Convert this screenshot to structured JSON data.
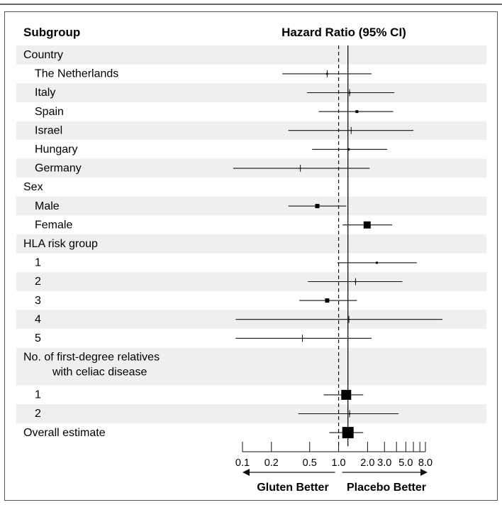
{
  "chart_data": {
    "type": "forest",
    "header": {
      "subgroup": "Subgroup",
      "effect": "Hazard Ratio (95% CI)"
    },
    "scale": "log",
    "xlim": [
      0.1,
      8.0
    ],
    "xticks": [
      "0.1",
      "0.2",
      "0.5",
      "1.0",
      "2.0",
      "3.0",
      "5.0",
      "8.0"
    ],
    "xtick_values": [
      0.1,
      0.2,
      0.5,
      1.0,
      2.0,
      3.0,
      5.0,
      8.0
    ],
    "minor_ticks": [
      4.0,
      6.0,
      7.0
    ],
    "reference_line": 1.0,
    "overall_line": 1.25,
    "direction_labels": {
      "left": "Gluten Better",
      "right": "Placebo Better"
    },
    "rows": [
      {
        "label": "Country",
        "header": true,
        "shaded": true
      },
      {
        "label": "The Netherlands",
        "hr": 0.76,
        "lo": 0.26,
        "hi": 2.2,
        "weight": 2.5,
        "shaded": false
      },
      {
        "label": "Italy",
        "hr": 1.3,
        "lo": 0.47,
        "hi": 3.8,
        "weight": 2.5,
        "shaded": true
      },
      {
        "label": "Spain",
        "hr": 1.55,
        "lo": 0.62,
        "hi": 3.7,
        "weight": 4,
        "shaded": false
      },
      {
        "label": "Israel",
        "hr": 1.35,
        "lo": 0.3,
        "hi": 6.0,
        "weight": 1.5,
        "shaded": true
      },
      {
        "label": "Hungary",
        "hr": 1.27,
        "lo": 0.53,
        "hi": 3.2,
        "weight": 3,
        "shaded": false
      },
      {
        "label": "Germany",
        "hr": 0.4,
        "lo": 0.08,
        "hi": 2.1,
        "weight": 1.5,
        "shaded": true
      },
      {
        "label": "Sex",
        "header": true,
        "shaded": false
      },
      {
        "label": "Male",
        "hr": 0.6,
        "lo": 0.3,
        "hi": 1.2,
        "weight": 6,
        "shaded": true
      },
      {
        "label": "Female",
        "hr": 1.98,
        "lo": 1.1,
        "hi": 3.6,
        "weight": 10,
        "shaded": false
      },
      {
        "label": "HLA risk group",
        "header": true,
        "shaded": true
      },
      {
        "label": "1",
        "hr": 2.5,
        "lo": 0.97,
        "hi": 6.5,
        "weight": 3,
        "shaded": false
      },
      {
        "label": "2",
        "hr": 1.5,
        "lo": 0.48,
        "hi": 4.6,
        "weight": 2,
        "shaded": true
      },
      {
        "label": "3",
        "hr": 0.76,
        "lo": 0.39,
        "hi": 1.55,
        "weight": 6,
        "shaded": false
      },
      {
        "label": "4",
        "hr": 1.28,
        "lo": 0.085,
        "hi": 12.0,
        "weight": 1.5,
        "shaded": true
      },
      {
        "label": "5",
        "hr": 0.42,
        "lo": 0.085,
        "hi": 2.2,
        "weight": 1.5,
        "shaded": false
      },
      {
        "label": "No. of first-degree relatives\nwith celiac disease",
        "header": true,
        "shaded": true,
        "tall": true
      },
      {
        "label": "1",
        "hr": 1.2,
        "lo": 0.7,
        "hi": 1.8,
        "weight": 14,
        "shaded": false
      },
      {
        "label": "2",
        "hr": 1.3,
        "lo": 0.38,
        "hi": 4.2,
        "weight": 2,
        "shaded": true
      },
      {
        "label": "Overall estimate",
        "hr": 1.25,
        "lo": 0.8,
        "hi": 1.8,
        "weight": 16,
        "shaded": false
      }
    ]
  }
}
